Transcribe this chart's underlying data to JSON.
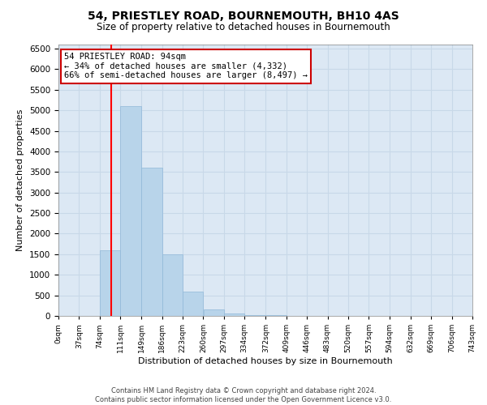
{
  "title1": "54, PRIESTLEY ROAD, BOURNEMOUTH, BH10 4AS",
  "title2": "Size of property relative to detached houses in Bournemouth",
  "xlabel": "Distribution of detached houses by size in Bournemouth",
  "ylabel": "Number of detached properties",
  "bar_color": "#b8d4ea",
  "bar_edge_color": "#90b8d8",
  "grid_color": "#c8d8e8",
  "background_color": "#dce8f4",
  "annotation_border_color": "#cc0000",
  "red_line_x": 94,
  "annotation_line1": "54 PRIESTLEY ROAD: 94sqm",
  "annotation_line2": "← 34% of detached houses are smaller (4,332)",
  "annotation_line3": "66% of semi-detached houses are larger (8,497) →",
  "footer1": "Contains HM Land Registry data © Crown copyright and database right 2024.",
  "footer2": "Contains public sector information licensed under the Open Government Licence v3.0.",
  "categories": [
    "0sqm",
    "37sqm",
    "74sqm",
    "111sqm",
    "149sqm",
    "186sqm",
    "223sqm",
    "260sqm",
    "297sqm",
    "334sqm",
    "372sqm",
    "409sqm",
    "446sqm",
    "483sqm",
    "520sqm",
    "557sqm",
    "594sqm",
    "632sqm",
    "669sqm",
    "706sqm",
    "743sqm"
  ],
  "bar_left_edges": [
    0,
    37,
    74,
    111,
    149,
    186,
    223,
    260,
    297,
    334,
    372,
    409,
    446,
    483,
    520,
    557,
    594,
    632,
    669,
    706
  ],
  "bar_widths": [
    37,
    37,
    37,
    38,
    37,
    37,
    37,
    37,
    37,
    38,
    37,
    37,
    37,
    37,
    37,
    37,
    38,
    37,
    37,
    37
  ],
  "bar_heights": [
    0,
    0,
    1600,
    5100,
    3600,
    1500,
    600,
    150,
    50,
    20,
    10,
    5,
    2,
    1,
    0,
    0,
    0,
    0,
    0,
    0
  ],
  "ylim": [
    0,
    6600
  ],
  "xlim": [
    0,
    743
  ],
  "yticks": [
    0,
    500,
    1000,
    1500,
    2000,
    2500,
    3000,
    3500,
    4000,
    4500,
    5000,
    5500,
    6000,
    6500
  ]
}
